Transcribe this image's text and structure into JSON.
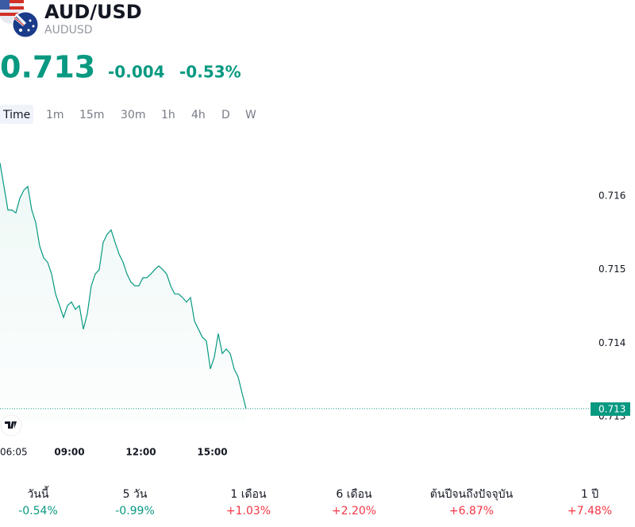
{
  "header": {
    "symbol": "AUD/USD",
    "ticker": "AUDUSD",
    "price": "0.713",
    "change": "-0.004",
    "change_percent": "-0.53%"
  },
  "timeframes": [
    "Time",
    "1m",
    "15m",
    "30m",
    "1h",
    "4h",
    "D",
    "W"
  ],
  "chart_data": {
    "type": "line",
    "color": "#089981",
    "x": [
      "06:05",
      "06:15",
      "06:25",
      "06:35",
      "06:45",
      "06:55",
      "07:05",
      "07:15",
      "07:25",
      "07:35",
      "07:45",
      "07:55",
      "08:05",
      "08:15",
      "08:25",
      "08:35",
      "08:45",
      "08:55",
      "09:05",
      "09:15",
      "09:25",
      "09:35",
      "09:45",
      "09:55",
      "10:05",
      "10:15",
      "10:25",
      "10:35",
      "10:45",
      "10:55",
      "11:05",
      "11:15",
      "11:25",
      "11:35",
      "11:45",
      "11:55",
      "12:05",
      "12:15",
      "12:25",
      "12:35",
      "12:45",
      "12:55",
      "13:05",
      "13:15",
      "13:25",
      "13:35",
      "13:45",
      "13:55",
      "14:05",
      "14:15",
      "14:25",
      "14:35",
      "14:45",
      "14:55",
      "15:05",
      "15:15",
      "15:25",
      "15:35",
      "15:45",
      "15:55",
      "16:05",
      "16:15",
      "16:25"
    ],
    "values": [
      0.71645,
      0.71613,
      0.71581,
      0.71581,
      0.71577,
      0.71597,
      0.71608,
      0.71613,
      0.71581,
      0.71564,
      0.71532,
      0.71516,
      0.7151,
      0.71494,
      0.71467,
      0.71451,
      0.71435,
      0.71451,
      0.71456,
      0.71446,
      0.71451,
      0.71419,
      0.7144,
      0.71478,
      0.71494,
      0.715,
      0.71537,
      0.71548,
      0.71554,
      0.71537,
      0.71521,
      0.7151,
      0.71494,
      0.71483,
      0.71478,
      0.71478,
      0.71489,
      0.71489,
      0.71494,
      0.715,
      0.71505,
      0.715,
      0.71494,
      0.71478,
      0.71467,
      0.71467,
      0.71462,
      0.71456,
      0.71462,
      0.7143,
      0.71419,
      0.71408,
      0.71403,
      0.71365,
      0.71381,
      0.71413,
      0.71386,
      0.71392,
      0.71386,
      0.71365,
      0.71354,
      0.71332,
      0.71311
    ],
    "xticks": [
      "06:05",
      "09:00",
      "12:00",
      "15:00"
    ],
    "ylim": [
      0.7127,
      0.7169
    ],
    "yticks": [
      0.713,
      0.714,
      0.715,
      0.716
    ],
    "price_label": "0.713"
  },
  "performance": [
    {
      "label": "วันนี้",
      "value": "-0.54%",
      "color": "#089981"
    },
    {
      "label": "5 วัน",
      "value": "-0.99%",
      "color": "#089981"
    },
    {
      "label": "1 เดือน",
      "value": "+1.03%",
      "color": "#f23645"
    },
    {
      "label": "6 เดือน",
      "value": "+2.20%",
      "color": "#f23645"
    },
    {
      "label": "ต้นปีจนถึงปัจจุบัน",
      "value": "+6.87%",
      "color": "#f23645"
    },
    {
      "label": "1 ปี",
      "value": "+7.48%",
      "color": "#f23645"
    }
  ]
}
